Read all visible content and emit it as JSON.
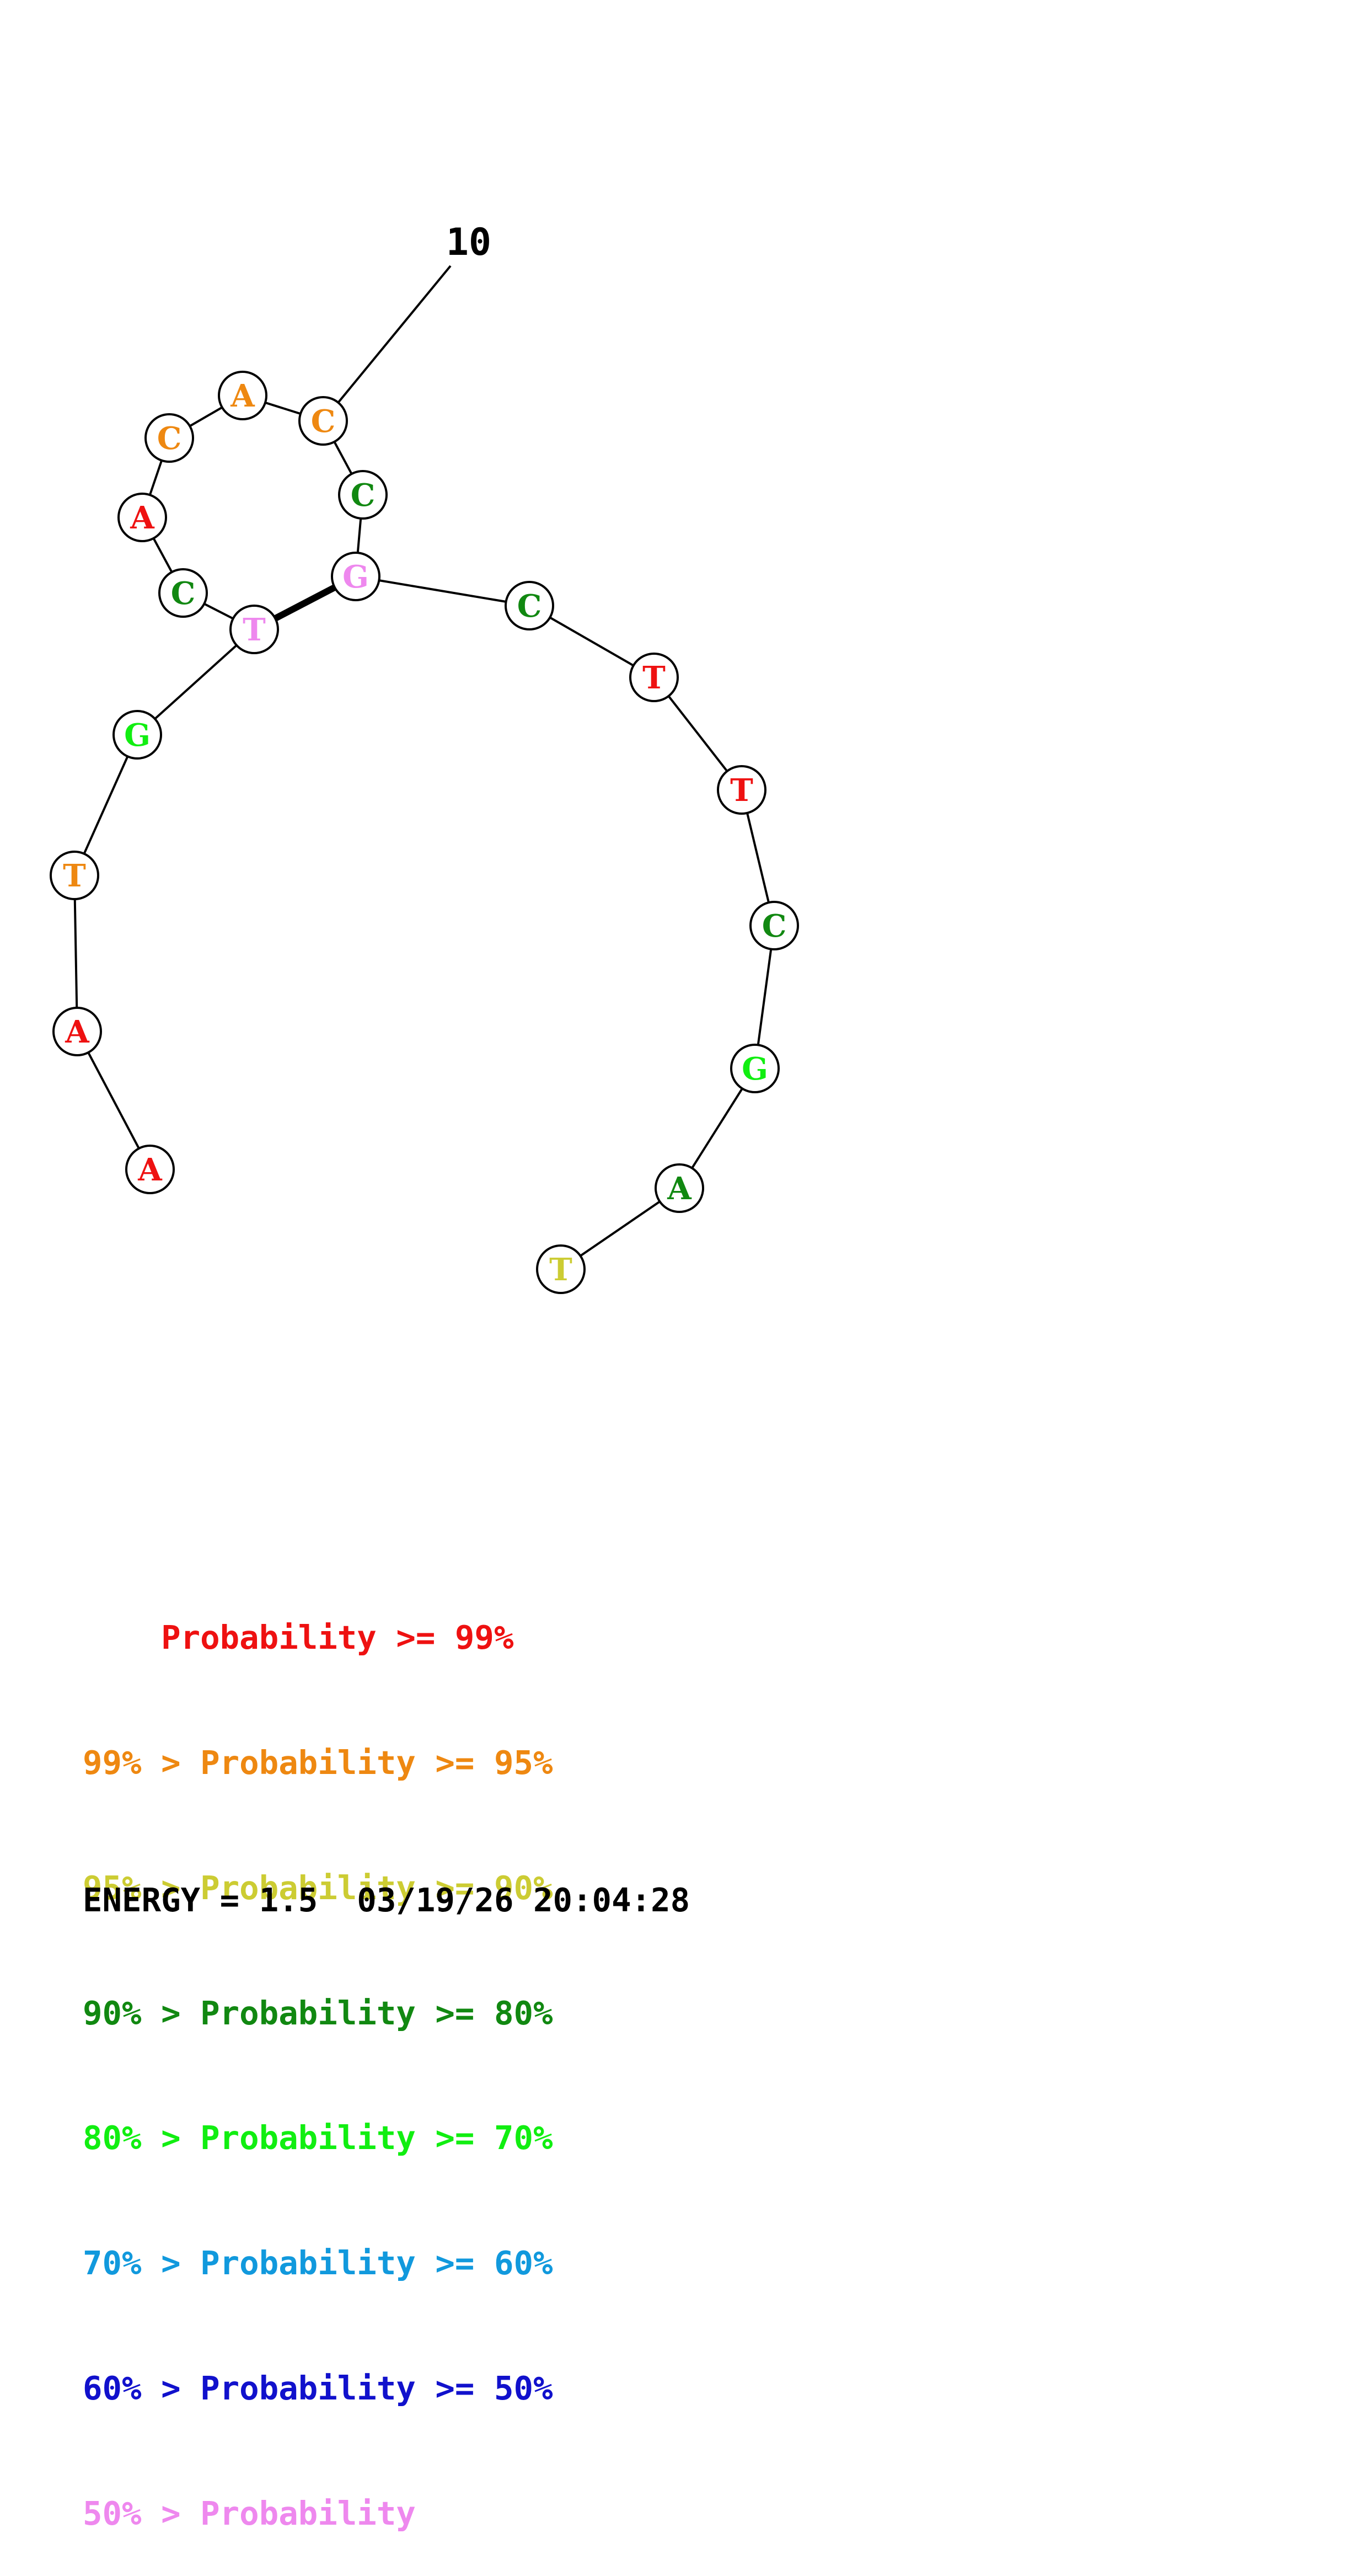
{
  "structure": {
    "position_label": "10",
    "bases": [
      {
        "letter": "A",
        "color": "#ee1111"
      },
      {
        "letter": "A",
        "color": "#ee1111"
      },
      {
        "letter": "T",
        "color": "#ee8811"
      },
      {
        "letter": "G",
        "color": "#11ee11"
      },
      {
        "letter": "T",
        "color": "#ee88ee"
      },
      {
        "letter": "C",
        "color": "#118811"
      },
      {
        "letter": "A",
        "color": "#ee1111"
      },
      {
        "letter": "C",
        "color": "#ee8811"
      },
      {
        "letter": "A",
        "color": "#ee8811"
      },
      {
        "letter": "C",
        "color": "#ee8811"
      },
      {
        "letter": "C",
        "color": "#118811"
      },
      {
        "letter": "G",
        "color": "#ee88ee"
      },
      {
        "letter": "C",
        "color": "#118811"
      },
      {
        "letter": "T",
        "color": "#ee1111"
      },
      {
        "letter": "T",
        "color": "#ee1111"
      },
      {
        "letter": "C",
        "color": "#118811"
      },
      {
        "letter": "G",
        "color": "#11ee11"
      },
      {
        "letter": "A",
        "color": "#118811"
      },
      {
        "letter": "T",
        "color": "#cccc33"
      }
    ]
  },
  "legend": [
    {
      "prefix": "    ",
      "text": "Probability >= 99%",
      "color": "#ee1111"
    },
    {
      "prefix": "99% > ",
      "text": "Probability >= 95%",
      "color": "#ee8811"
    },
    {
      "prefix": "95% > ",
      "text": "Probability >= 90%",
      "color": "#cccc33"
    },
    {
      "prefix": "90% > ",
      "text": "Probability >= 80%",
      "color": "#118811"
    },
    {
      "prefix": "80% > ",
      "text": "Probability >= 70%",
      "color": "#11ee11"
    },
    {
      "prefix": "70% > ",
      "text": "Probability >= 60%",
      "color": "#1199dd"
    },
    {
      "prefix": "60% > ",
      "text": "Probability >= 50%",
      "color": "#1111cc"
    },
    {
      "prefix": "50% > ",
      "text": "Probability",
      "color": "#ee88ee"
    }
  ],
  "footer": {
    "energy_text": "ENERGY = 1.5  03/19/26 20:04:28"
  }
}
